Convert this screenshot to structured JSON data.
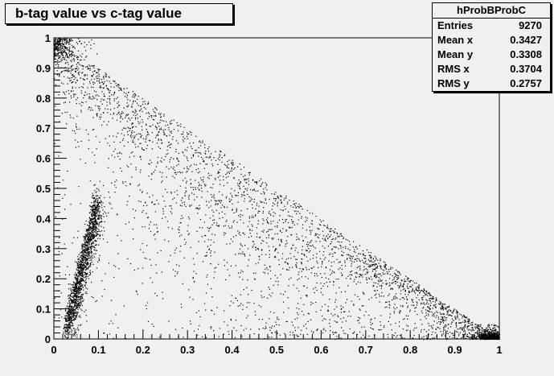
{
  "chart_data": {
    "type": "scatter",
    "title": "b-tag value vs c-tag value",
    "xlabel": "",
    "ylabel": "",
    "xlim": [
      0,
      1
    ],
    "ylim": [
      0,
      1
    ],
    "xticks": [
      "0",
      "0.1",
      "0.2",
      "0.3",
      "0.4",
      "0.5",
      "0.6",
      "0.7",
      "0.8",
      "0.9",
      "1"
    ],
    "yticks": [
      "0",
      "0.1",
      "0.2",
      "0.3",
      "0.4",
      "0.5",
      "0.6",
      "0.7",
      "0.8",
      "0.9",
      "1"
    ],
    "grid": false,
    "marker_color": "#000000",
    "point_clusters": [
      {
        "description": "diagonal band",
        "x_range": [
          0,
          1
        ],
        "y_range": [
          1,
          0
        ]
      },
      {
        "description": "dense low-x cluster",
        "x_center": 0.035,
        "y_center": 0.2
      },
      {
        "description": "dense corner cluster",
        "x_center": 0.99,
        "y_center": 0.01
      }
    ],
    "stats": {
      "name": "hProbBProbC",
      "rows": [
        {
          "label": "Entries",
          "value": "9270"
        },
        {
          "label": "Mean x",
          "value": "0.3427"
        },
        {
          "label": "Mean y",
          "value": "0.3308"
        },
        {
          "label": "RMS x",
          "value": "0.3704"
        },
        {
          "label": "RMS y",
          "value": "0.2757"
        }
      ]
    }
  }
}
